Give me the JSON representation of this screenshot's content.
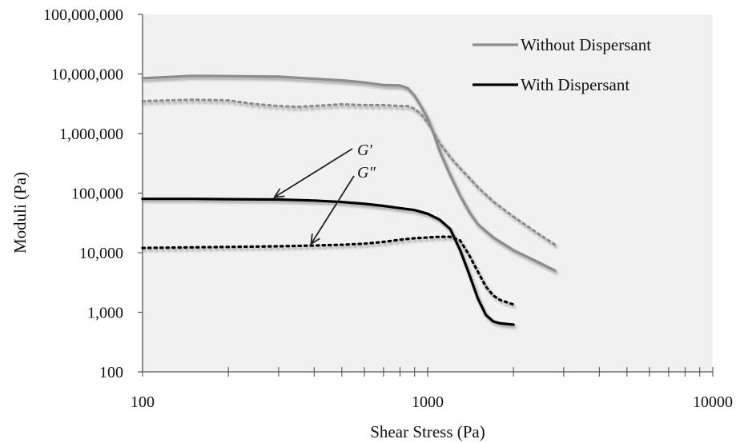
{
  "chart_data": {
    "type": "line",
    "xlabel": "Shear Stress (Pa)",
    "ylabel": "Moduli (Pa)",
    "x_scale": "log",
    "y_scale": "log",
    "xlim": [
      100,
      10000
    ],
    "ylim": [
      100,
      100000000
    ],
    "x_ticks": [
      {
        "value": 100,
        "label": "100"
      },
      {
        "value": 1000,
        "label": "1000"
      },
      {
        "value": 10000,
        "label": "10000"
      }
    ],
    "y_ticks": [
      {
        "value": 100,
        "label": "100"
      },
      {
        "value": 1000,
        "label": "1,000"
      },
      {
        "value": 10000,
        "label": "10,000"
      },
      {
        "value": 100000,
        "label": "100,000"
      },
      {
        "value": 1000000,
        "label": "1,000,000"
      },
      {
        "value": 10000000,
        "label": "10,000,000"
      },
      {
        "value": 100000000,
        "label": "100,000,000"
      }
    ],
    "legend": {
      "position": "top-right",
      "entries": [
        {
          "label": "Without Dispersant",
          "color": "#8c8c8c"
        },
        {
          "label": "With Dispersant",
          "color": "#000000"
        }
      ]
    },
    "annotations": [
      {
        "text": "G′",
        "points_to_x": 290,
        "points_to_y": 85000
      },
      {
        "text": "G″",
        "points_to_x": 390,
        "points_to_y": 14000
      }
    ],
    "plot_background": "#f1f1f1",
    "series": [
      {
        "legend_label": "Without Dispersant",
        "modulus": "G′",
        "color": "#8c8c8c",
        "dash": "solid",
        "x": [
          100,
          150,
          200,
          300,
          400,
          500,
          600,
          700,
          800,
          850,
          900,
          950,
          1000,
          1050,
          1100,
          1200,
          1300,
          1400,
          1500,
          1700,
          2000,
          2400,
          2800
        ],
        "y": [
          8500000,
          9300000,
          9200000,
          9000000,
          8300000,
          7800000,
          7200000,
          6500000,
          6400000,
          5800000,
          4300000,
          2800000,
          1800000,
          1000000,
          520000,
          200000,
          90000,
          48000,
          30000,
          18000,
          11000,
          7200,
          5000
        ]
      },
      {
        "legend_label": "Without Dispersant",
        "modulus": "G″",
        "color": "#8c8c8c",
        "dash": "dotted",
        "x": [
          100,
          150,
          200,
          250,
          300,
          350,
          400,
          500,
          600,
          700,
          800,
          850,
          900,
          950,
          1000,
          1050,
          1100,
          1200,
          1300,
          1400,
          1500,
          1700,
          2000,
          2400,
          2800
        ],
        "y": [
          3500000,
          3700000,
          3600000,
          3100000,
          2900000,
          2800000,
          2900000,
          3100000,
          3000000,
          3000000,
          2900000,
          2900000,
          2600000,
          2100000,
          1500000,
          1050000,
          700000,
          400000,
          260000,
          180000,
          125000,
          72000,
          40000,
          22000,
          13500
        ]
      },
      {
        "legend_label": "With Dispersant",
        "modulus": "G′",
        "color": "#000000",
        "dash": "solid",
        "x": [
          100,
          150,
          200,
          300,
          400,
          500,
          600,
          700,
          800,
          900,
          1000,
          1100,
          1200,
          1300,
          1400,
          1500,
          1600,
          1700,
          1800,
          2000
        ],
        "y": [
          80000,
          80000,
          79000,
          78000,
          75000,
          71000,
          66000,
          61000,
          56000,
          52000,
          45000,
          36000,
          25000,
          11000,
          4300,
          1700,
          900,
          700,
          650,
          620
        ]
      },
      {
        "legend_label": "With Dispersant",
        "modulus": "G″",
        "color": "#000000",
        "dash": "dotted",
        "x": [
          100,
          150,
          200,
          300,
          400,
          500,
          600,
          700,
          800,
          900,
          1000,
          1100,
          1200,
          1300,
          1400,
          1500,
          1600,
          1700,
          1800,
          2000
        ],
        "y": [
          12000,
          12300,
          12500,
          12800,
          13200,
          13600,
          14200,
          15200,
          16500,
          17500,
          18000,
          18500,
          18500,
          16000,
          9000,
          4800,
          2700,
          1900,
          1600,
          1350
        ]
      }
    ]
  }
}
